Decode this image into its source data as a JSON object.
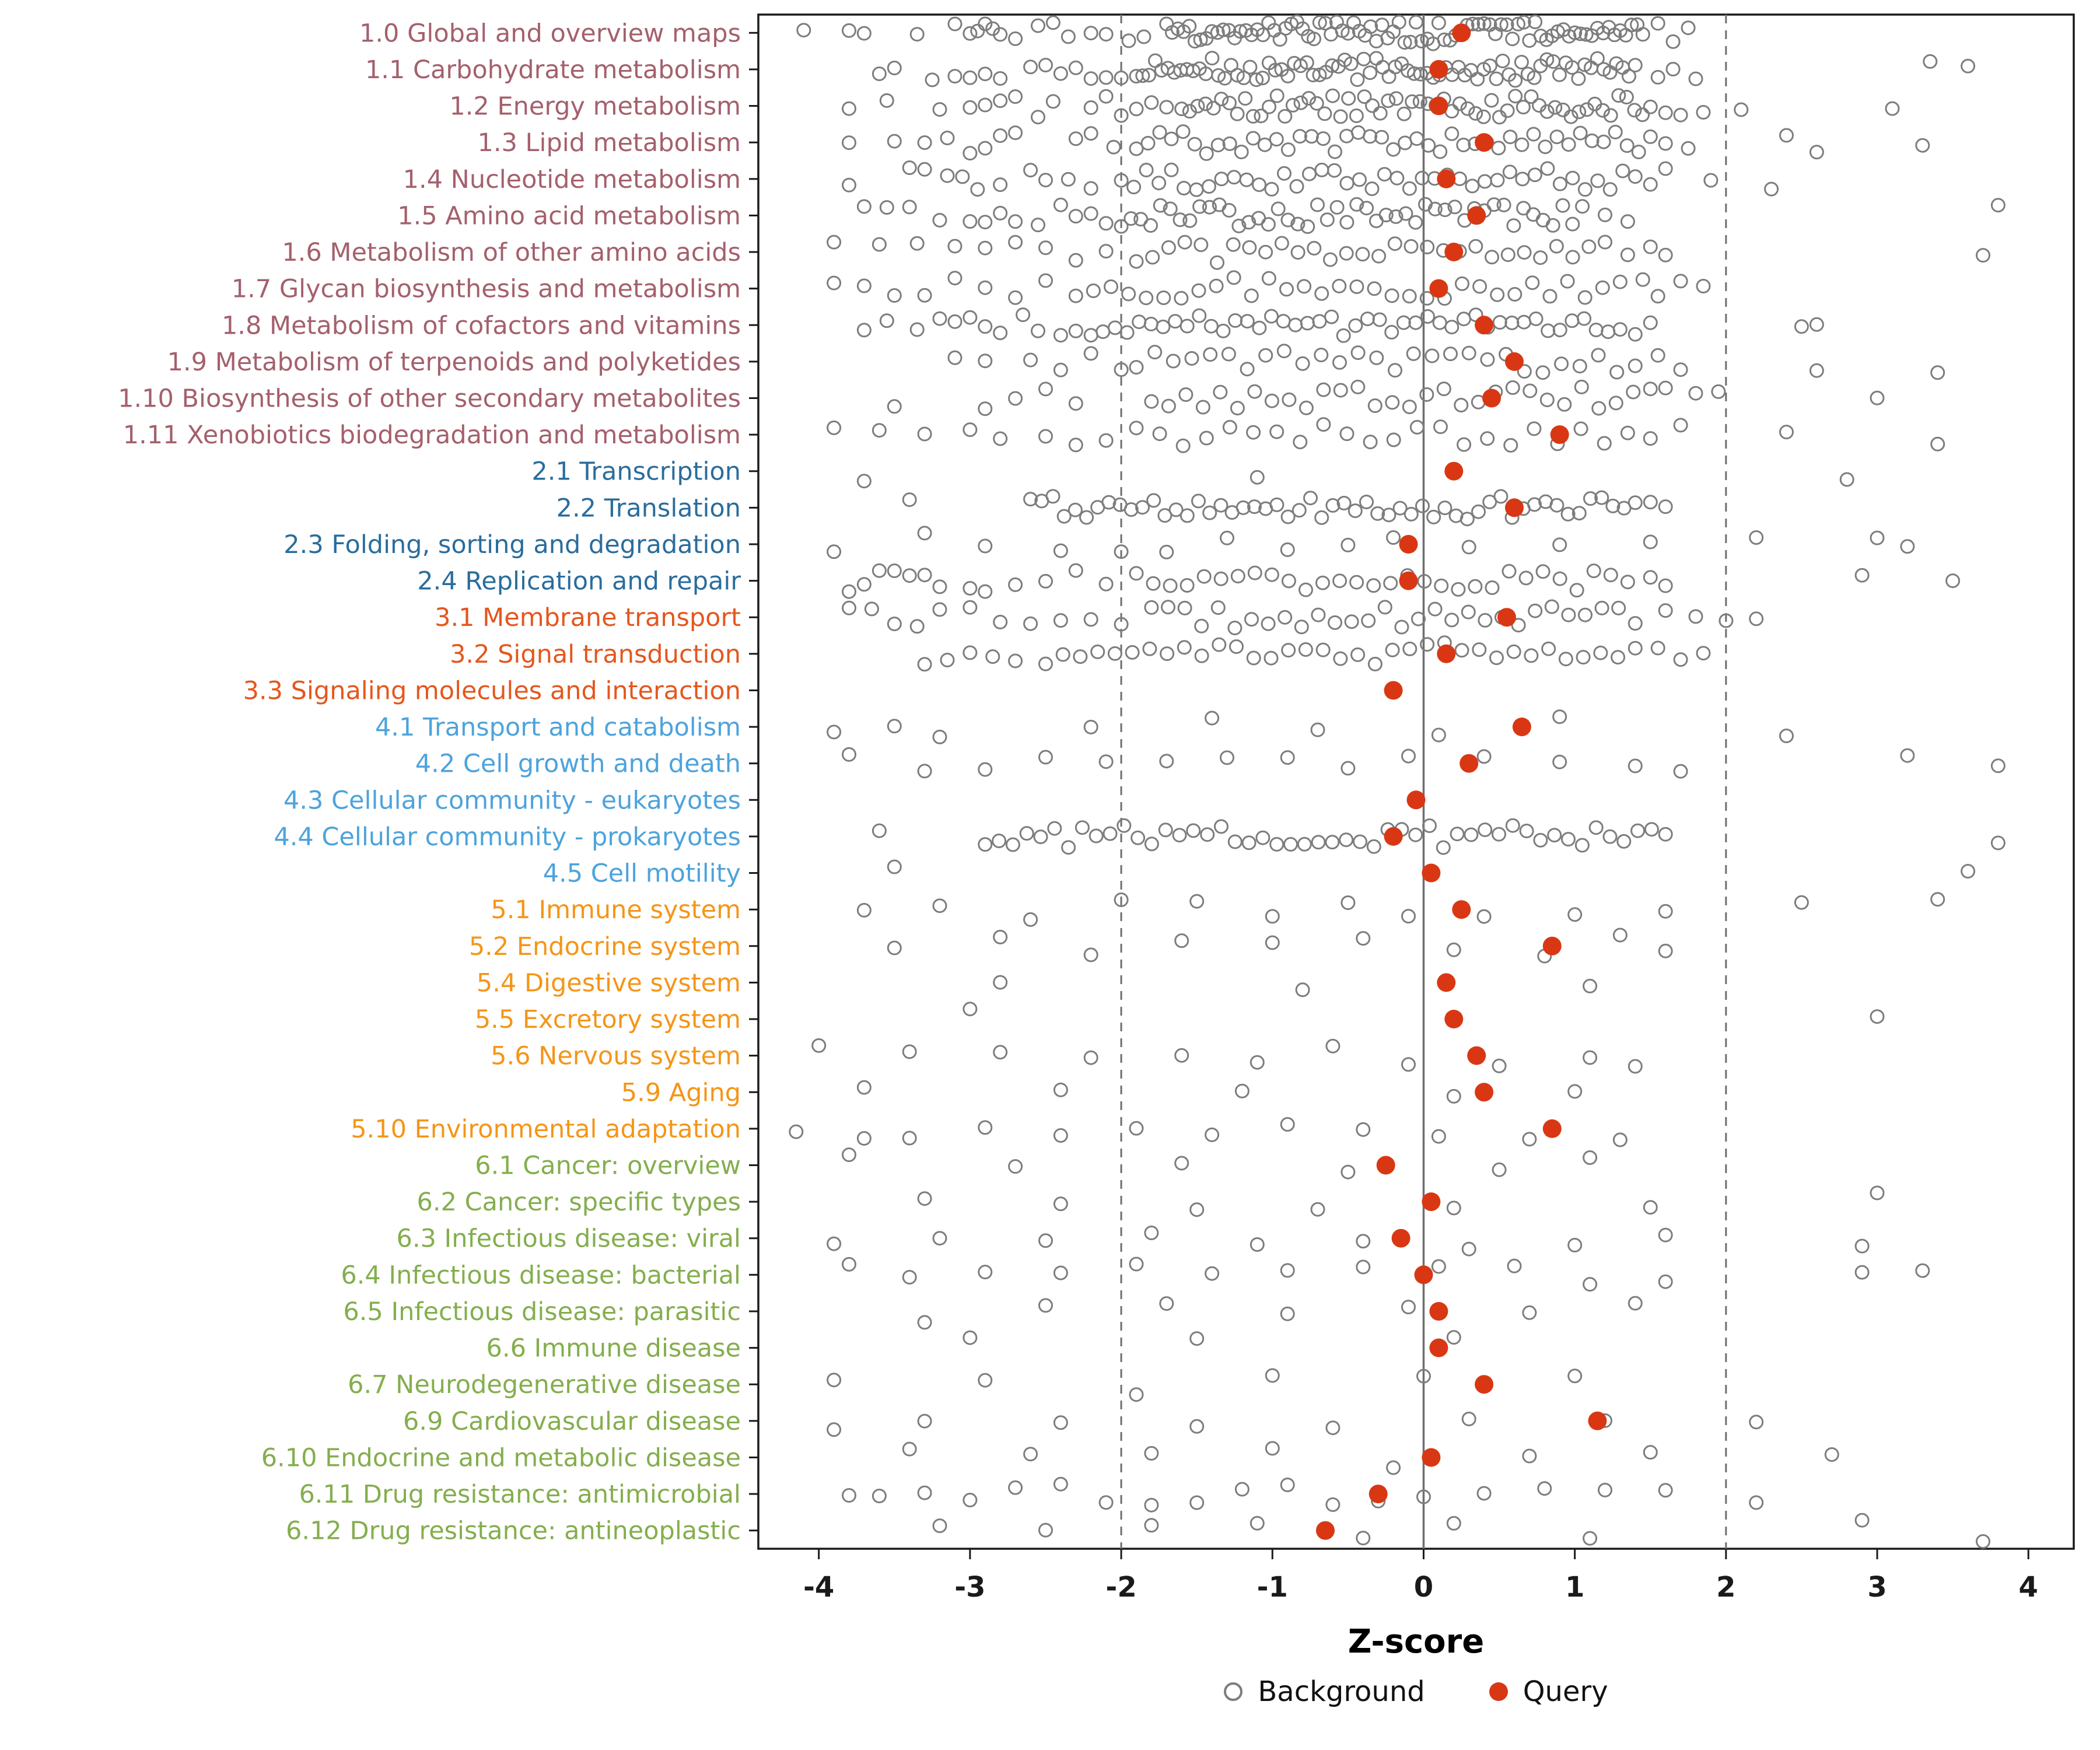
{
  "chart_data": {
    "type": "scatter",
    "title": "",
    "xlabel": "Z-score",
    "xlim": [
      -4.4,
      4.3
    ],
    "x_ticks": [
      -4,
      -3,
      -2,
      -1,
      0,
      1,
      2,
      3,
      4
    ],
    "grid": false,
    "legend_position": "bottom",
    "reference_lines": {
      "solid": [
        0
      ],
      "dashed": [
        -2,
        2
      ]
    },
    "point_colors": {
      "background_stroke": "#7d7d7d",
      "query_fill": "#d93714"
    },
    "group_colors": {
      "metabolism": "#a4606c",
      "genetic": "#2a6d9c",
      "environmental": "#e4571e",
      "cellular": "#4da3dc",
      "organismal": "#f59517",
      "disease": "#84ae4d"
    },
    "legend": [
      {
        "label": "Background",
        "marker": "open-gray-circle"
      },
      {
        "label": "Query",
        "marker": "filled-red-circle"
      }
    ],
    "rows": [
      {
        "label": "1.0 Global and overview maps",
        "group": "metabolism",
        "query": 0.25,
        "background": [
          [
            -1.7,
            1.45,
            85
          ],
          -4.1,
          -3.8,
          -3.7,
          -3.35,
          -3.1,
          -3.0,
          -2.95,
          -2.9,
          -2.85,
          -2.8,
          -2.7,
          -2.55,
          -2.45,
          -2.35,
          -2.2,
          -2.1,
          -1.95,
          -1.85,
          1.55,
          1.65,
          1.75
        ]
      },
      {
        "label": "1.1 Carbohydrate metabolism",
        "group": "metabolism",
        "query": 0.1,
        "background": [
          [
            -1.9,
            1.4,
            80
          ],
          -3.6,
          -3.5,
          -3.25,
          -3.1,
          -3.0,
          -2.9,
          -2.8,
          -2.6,
          -2.5,
          -2.4,
          -2.3,
          -2.2,
          -2.1,
          -2.0,
          1.55,
          1.65,
          1.8,
          3.35,
          3.6
        ]
      },
      {
        "label": "1.2 Energy metabolism",
        "group": "metabolism",
        "query": 0.1,
        "background": [
          [
            -1.6,
            1.5,
            60
          ],
          -3.8,
          -3.55,
          -3.2,
          -3.0,
          -2.9,
          -2.8,
          -2.7,
          -2.55,
          -2.45,
          -2.2,
          -2.1,
          -2.0,
          -1.9,
          -1.8,
          -1.7,
          1.6,
          1.7,
          1.85,
          2.1,
          3.1
        ]
      },
      {
        "label": "1.3 Lipid metabolism",
        "group": "metabolism",
        "query": 0.4,
        "background": [
          [
            -1.9,
            1.5,
            45
          ],
          -3.8,
          -3.5,
          -3.3,
          -3.15,
          -3.0,
          -2.9,
          -2.8,
          -2.7,
          -2.3,
          -2.2,
          -2.05,
          1.6,
          1.75,
          2.4,
          2.6,
          3.3
        ]
      },
      {
        "label": "1.4 Nucleotide metabolism",
        "group": "metabolism",
        "query": 0.15,
        "background": [
          [
            -2.0,
            1.4,
            42
          ],
          -3.8,
          -3.4,
          -3.3,
          -3.15,
          -3.05,
          -2.95,
          -2.8,
          -2.6,
          -2.5,
          -2.35,
          -2.2,
          1.5,
          1.6,
          1.9,
          2.3
        ]
      },
      {
        "label": "1.5 Amino acid metabolism",
        "group": "metabolism",
        "query": 0.35,
        "background": [
          [
            -2.0,
            1.05,
            48
          ],
          -3.7,
          -3.55,
          -3.4,
          -3.2,
          -3.0,
          -2.9,
          -2.8,
          -2.7,
          -2.55,
          -2.4,
          -2.3,
          -2.2,
          -2.1,
          1.2,
          1.35,
          3.8
        ]
      },
      {
        "label": "1.6 Metabolism of other amino acids",
        "group": "metabolism",
        "query": 0.2,
        "background": [
          [
            -1.9,
            1.2,
            30
          ],
          -3.9,
          -3.6,
          -3.35,
          -3.1,
          -2.9,
          -2.7,
          -2.5,
          -2.3,
          -2.1,
          1.35,
          1.5,
          1.6,
          3.7
        ]
      },
      {
        "label": "1.7 Glycan biosynthesis and metabolism",
        "group": "metabolism",
        "query": 0.1,
        "background": [
          [
            -2.3,
            1.3,
            32
          ],
          -3.9,
          -3.7,
          -3.5,
          -3.3,
          -3.1,
          -2.9,
          -2.7,
          -2.5,
          1.45,
          1.55,
          1.7,
          1.85
        ]
      },
      {
        "label": "1.8 Metabolism of cofactors and vitamins",
        "group": "metabolism",
        "query": 0.4,
        "background": [
          [
            -2.2,
            1.3,
            45
          ],
          -3.7,
          -3.55,
          -3.35,
          -3.2,
          -3.1,
          -3.0,
          -2.9,
          -2.8,
          -2.65,
          -2.55,
          -2.4,
          -2.3,
          1.4,
          1.5,
          2.5,
          2.6
        ]
      },
      {
        "label": "1.9 Metabolism of terpenoids and polyketides",
        "group": "metabolism",
        "query": 0.6,
        "background": [
          [
            -1.9,
            1.4,
            28
          ],
          -3.1,
          -2.9,
          -2.6,
          -2.4,
          -2.2,
          -2.0,
          1.55,
          1.7,
          2.6,
          3.4
        ]
      },
      {
        "label": "1.10 Biosynthesis of other secondary metabolites",
        "group": "metabolism",
        "query": 0.45,
        "background": [
          [
            -1.8,
            1.5,
            30
          ],
          -3.5,
          -2.9,
          -2.7,
          -2.5,
          -2.3,
          1.6,
          1.8,
          1.95,
          3.0
        ]
      },
      {
        "label": "1.11 Xenobiotics biodegradation and metabolism",
        "group": "metabolism",
        "query": 0.9,
        "background": [
          [
            -1.9,
            1.35,
            22
          ],
          -3.9,
          -3.6,
          -3.3,
          -3.0,
          -2.8,
          -2.5,
          -2.3,
          -2.1,
          1.5,
          1.7,
          2.4,
          3.4
        ]
      },
      {
        "label": "2.1 Transcription",
        "group": "genetic",
        "query": 0.2,
        "background": [
          -3.7,
          -1.1,
          2.8
        ]
      },
      {
        "label": "2.2 Translation",
        "group": "genetic",
        "query": 0.6,
        "background": [
          [
            -2.6,
            1.4,
            55
          ],
          -3.4,
          1.5,
          1.6
        ]
      },
      {
        "label": "2.3 Folding, sorting and degradation",
        "group": "genetic",
        "query": -0.1,
        "background": [
          -3.9,
          -3.3,
          -2.9,
          -2.4,
          -2.0,
          -1.7,
          -1.3,
          -0.9,
          -0.5,
          -0.2,
          0.3,
          0.9,
          1.5,
          2.2,
          3.0,
          3.2
        ]
      },
      {
        "label": "2.4 Replication and repair",
        "group": "genetic",
        "query": -0.1,
        "background": [
          [
            -1.9,
            1.35,
            30
          ],
          -3.8,
          -3.7,
          -3.6,
          -3.5,
          -3.4,
          -3.3,
          -3.2,
          -3.0,
          -2.9,
          -2.7,
          -2.5,
          -2.3,
          -2.1,
          1.5,
          1.6,
          2.9,
          3.5
        ]
      },
      {
        "label": "3.1 Membrane transport",
        "group": "environmental",
        "query": 0.55,
        "background": [
          [
            -1.8,
            1.4,
            30
          ],
          -3.8,
          -3.65,
          -3.5,
          -3.35,
          -3.2,
          -3.0,
          -2.8,
          -2.6,
          -2.4,
          -2.2,
          -2.0,
          1.6,
          1.8,
          2.0,
          2.2
        ]
      },
      {
        "label": "3.2 Signal transduction",
        "group": "environmental",
        "query": 0.15,
        "background": [
          [
            -2.5,
            1.4,
            35
          ],
          -3.3,
          -3.15,
          -3.0,
          -2.85,
          -2.7,
          1.55,
          1.7,
          1.85
        ]
      },
      {
        "label": "3.3 Signaling molecules and interaction",
        "group": "environmental",
        "query": -0.2,
        "background": []
      },
      {
        "label": "4.1 Transport and catabolism",
        "group": "cellular",
        "query": 0.65,
        "background": [
          -3.9,
          -3.5,
          -3.2,
          -2.2,
          -1.4,
          -0.7,
          0.1,
          0.9,
          2.4
        ]
      },
      {
        "label": "4.2 Cell growth and death",
        "group": "cellular",
        "query": 0.3,
        "background": [
          -3.8,
          -3.3,
          -2.9,
          -2.5,
          -2.1,
          -1.7,
          -1.3,
          -0.9,
          -0.5,
          -0.1,
          0.4,
          0.9,
          1.4,
          1.7,
          3.2,
          3.8
        ]
      },
      {
        "label": "4.3 Cellular community - eukaryotes",
        "group": "cellular",
        "query": -0.05,
        "background": []
      },
      {
        "label": "4.4 Cellular community - prokaryotes",
        "group": "cellular",
        "query": -0.2,
        "background": [
          [
            -2.9,
            1.6,
            50
          ],
          -3.6,
          3.8
        ]
      },
      {
        "label": "4.5 Cell motility",
        "group": "cellular",
        "query": 0.05,
        "background": [
          -3.5,
          3.6
        ]
      },
      {
        "label": "5.1 Immune system",
        "group": "organismal",
        "query": 0.25,
        "background": [
          -3.7,
          -3.2,
          -2.6,
          -2.0,
          -1.5,
          -1.0,
          -0.5,
          -0.1,
          0.4,
          1.0,
          1.6,
          2.5,
          3.4
        ]
      },
      {
        "label": "5.2 Endocrine system",
        "group": "organismal",
        "query": 0.85,
        "background": [
          -3.5,
          -2.8,
          -2.2,
          -1.6,
          -1.0,
          -0.4,
          0.2,
          0.8,
          1.3,
          1.6
        ]
      },
      {
        "label": "5.4 Digestive system",
        "group": "organismal",
        "query": 0.15,
        "background": [
          -2.8,
          -0.8,
          1.1
        ]
      },
      {
        "label": "5.5 Excretory system",
        "group": "organismal",
        "query": 0.2,
        "background": [
          -3.0,
          3.0
        ]
      },
      {
        "label": "5.6 Nervous system",
        "group": "organismal",
        "query": 0.35,
        "background": [
          -4.0,
          -3.4,
          -2.8,
          -2.2,
          -1.6,
          -1.1,
          -0.6,
          -0.1,
          0.5,
          1.1,
          1.4
        ]
      },
      {
        "label": "5.9 Aging",
        "group": "organismal",
        "query": 0.4,
        "background": [
          -3.7,
          -2.4,
          -1.2,
          0.2,
          1.0
        ]
      },
      {
        "label": "5.10 Environmental adaptation",
        "group": "organismal",
        "query": 0.85,
        "background": [
          -4.15,
          -3.7,
          -3.4,
          -2.9,
          -2.4,
          -1.9,
          -1.4,
          -0.9,
          -0.4,
          0.1,
          0.7,
          1.3
        ]
      },
      {
        "label": "6.1 Cancer: overview",
        "group": "disease",
        "query": -0.25,
        "background": [
          -3.8,
          -2.7,
          -1.6,
          -0.5,
          0.5,
          1.1
        ]
      },
      {
        "label": "6.2 Cancer: specific types",
        "group": "disease",
        "query": 0.05,
        "background": [
          -3.3,
          -2.4,
          -1.5,
          -0.7,
          0.2,
          1.5,
          3.0
        ]
      },
      {
        "label": "6.3 Infectious disease: viral",
        "group": "disease",
        "query": -0.15,
        "background": [
          -3.9,
          -3.2,
          -2.5,
          -1.8,
          -1.1,
          -0.4,
          0.3,
          1.0,
          1.6,
          2.9
        ]
      },
      {
        "label": "6.4 Infectious disease: bacterial",
        "group": "disease",
        "query": 0.0,
        "background": [
          -3.8,
          -3.4,
          -2.9,
          -2.4,
          -1.9,
          -1.4,
          -0.9,
          -0.4,
          0.1,
          0.6,
          1.1,
          1.6,
          2.9,
          3.3
        ]
      },
      {
        "label": "6.5 Infectious disease: parasitic",
        "group": "disease",
        "query": 0.1,
        "background": [
          -3.3,
          -2.5,
          -1.7,
          -0.9,
          -0.1,
          0.7,
          1.4
        ]
      },
      {
        "label": "6.6 Immune disease",
        "group": "disease",
        "query": 0.1,
        "background": [
          -3.0,
          -1.5,
          0.2
        ]
      },
      {
        "label": "6.7 Neurodegenerative disease",
        "group": "disease",
        "query": 0.4,
        "background": [
          -3.9,
          -2.9,
          -1.9,
          -1.0,
          0.0,
          1.0
        ]
      },
      {
        "label": "6.9 Cardiovascular disease",
        "group": "disease",
        "query": 1.15,
        "background": [
          -3.9,
          -3.3,
          -2.4,
          -1.5,
          -0.6,
          0.3,
          1.2,
          2.2
        ]
      },
      {
        "label": "6.10 Endocrine and metabolic disease",
        "group": "disease",
        "query": 0.05,
        "background": [
          -3.4,
          -2.6,
          -1.8,
          -1.0,
          -0.2,
          0.7,
          1.5,
          2.7
        ]
      },
      {
        "label": "6.11 Drug resistance: antimicrobial",
        "group": "disease",
        "query": -0.3,
        "background": [
          -3.8,
          -3.6,
          -3.3,
          -3.0,
          -2.7,
          -2.4,
          -2.1,
          -1.8,
          -1.5,
          -1.2,
          -0.9,
          -0.6,
          -0.3,
          0.0,
          0.4,
          0.8,
          1.2,
          1.6,
          2.2
        ]
      },
      {
        "label": "6.12 Drug resistance: antineoplastic",
        "group": "disease",
        "query": -0.65,
        "background": [
          -3.2,
          -2.5,
          -1.8,
          -1.1,
          -0.4,
          0.2,
          1.1,
          2.9,
          3.7
        ]
      }
    ]
  }
}
